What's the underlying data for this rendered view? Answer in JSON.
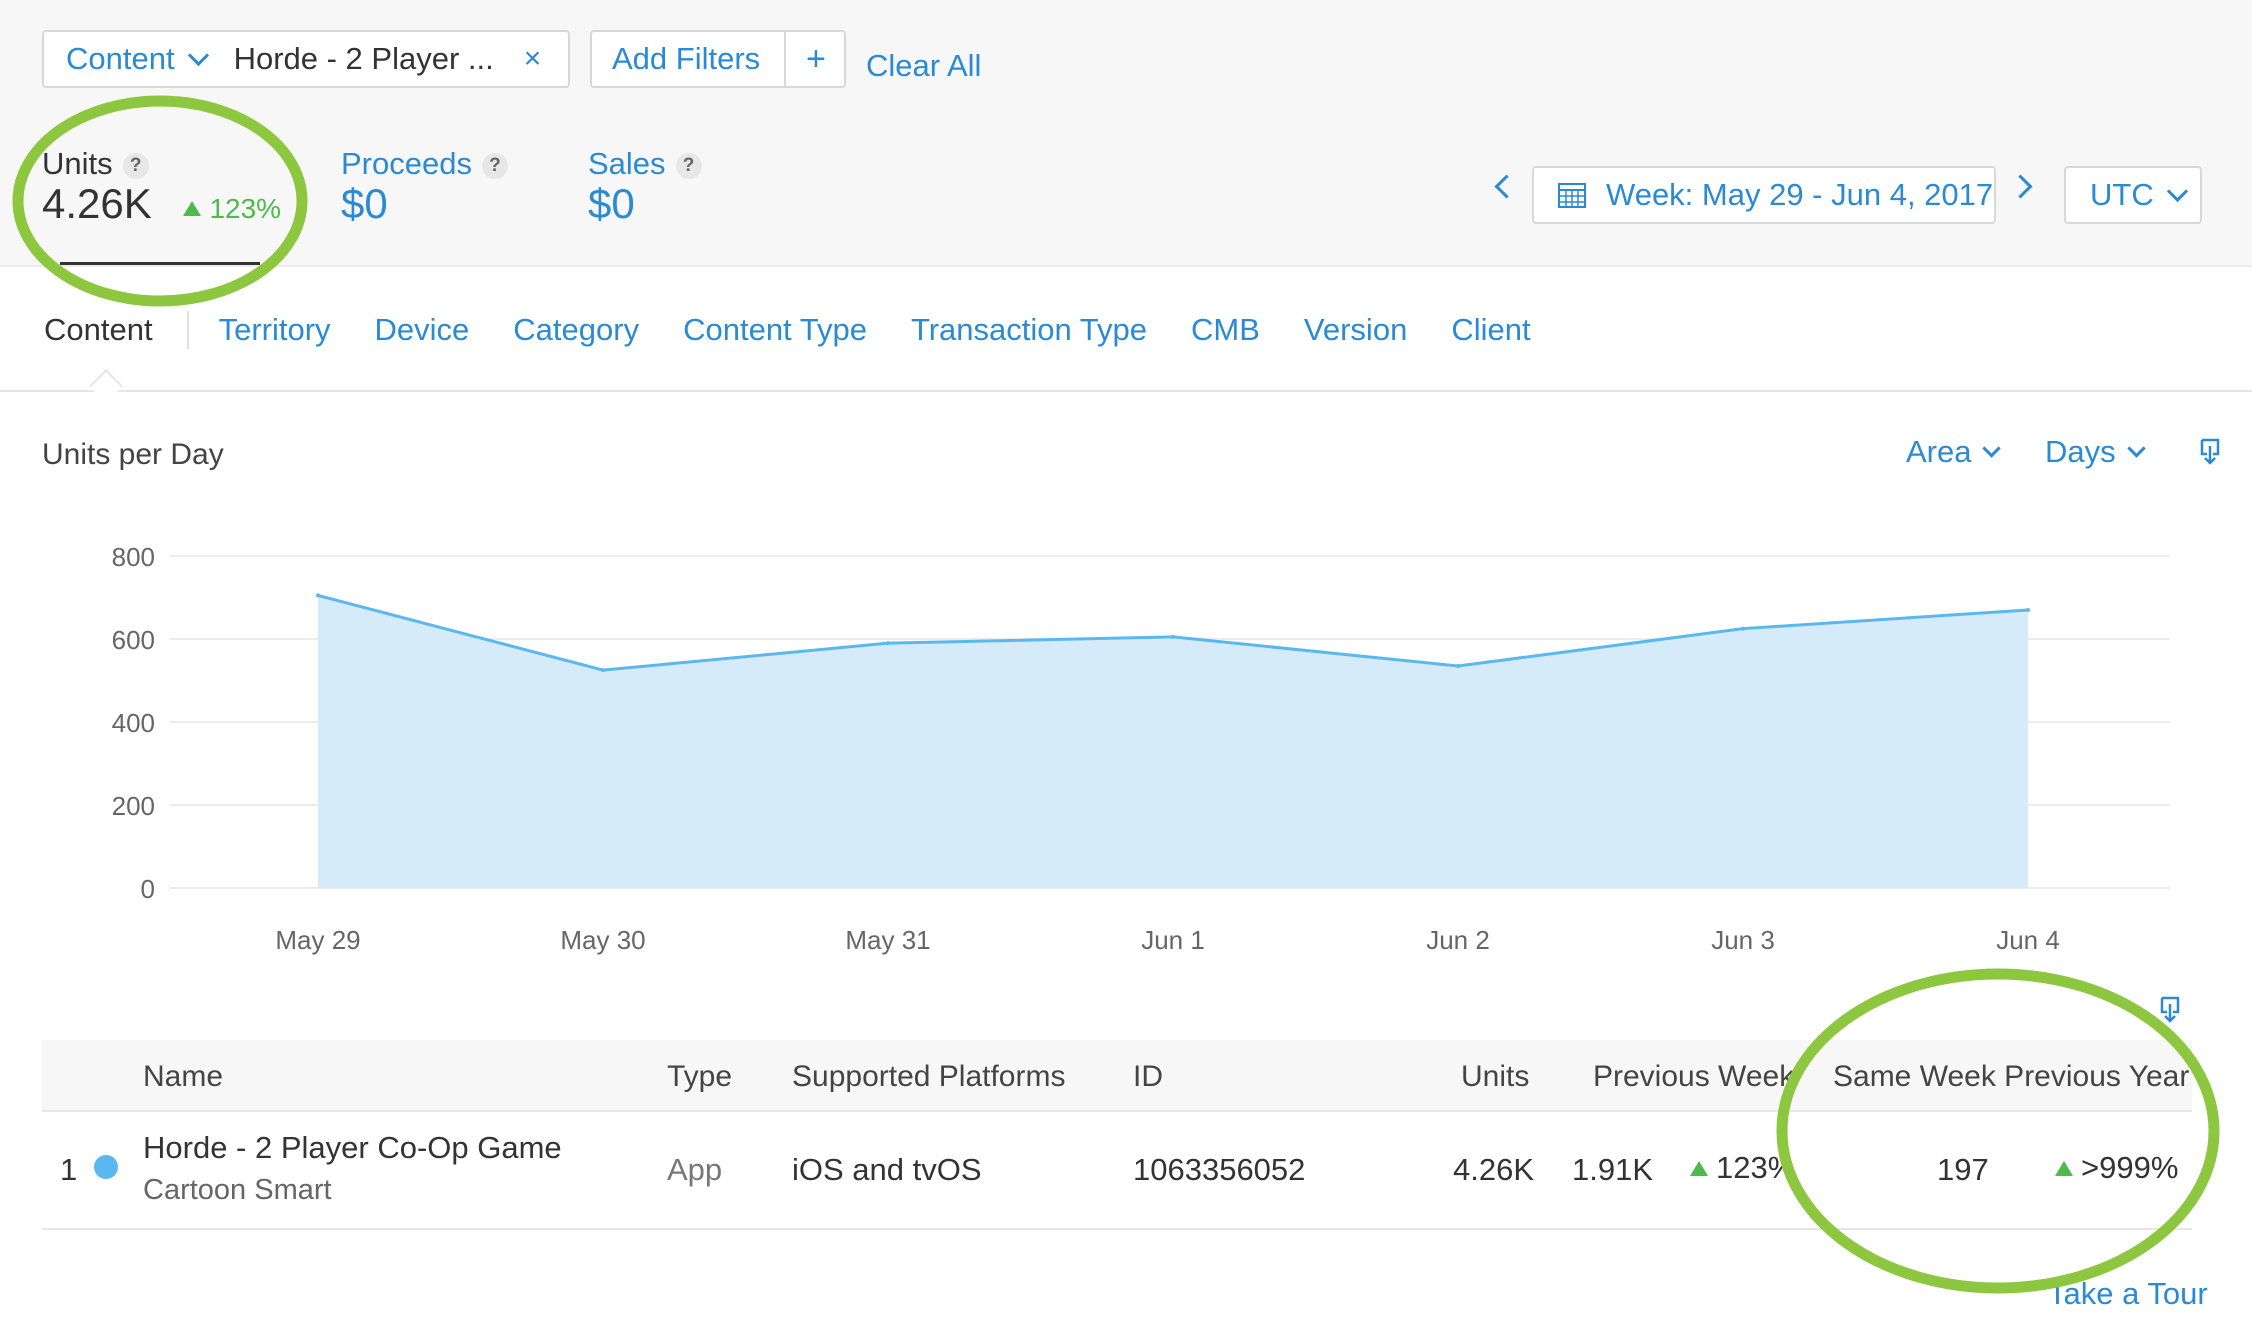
{
  "filters": {
    "content_label": "Content",
    "content_value": "Horde - 2 Player ...",
    "remove_symbol": "×",
    "add_filters_label": "Add Filters",
    "add_symbol": "+",
    "clear_all_label": "Clear All"
  },
  "metrics": {
    "units": {
      "label": "Units",
      "value": "4.26K",
      "delta": "123%"
    },
    "proceeds": {
      "label": "Proceeds",
      "value": "$0"
    },
    "sales": {
      "label": "Sales",
      "value": "$0"
    },
    "help_symbol": "?"
  },
  "date_range": {
    "label": "Week: May 29 - Jun 4, 2017",
    "timezone": "UTC"
  },
  "tabs": [
    "Content",
    "Territory",
    "Device",
    "Category",
    "Content Type",
    "Transaction Type",
    "CMB",
    "Version",
    "Client"
  ],
  "chart_controls": {
    "title": "Units per Day",
    "chart_type": "Area",
    "granularity": "Days"
  },
  "chart_data": {
    "type": "area",
    "title": "Units per Day",
    "categories": [
      "May 29",
      "May 30",
      "May 31",
      "Jun 1",
      "Jun 2",
      "Jun 3",
      "Jun 4"
    ],
    "values": [
      705,
      525,
      590,
      605,
      535,
      625,
      670
    ],
    "ylim": [
      0,
      800
    ],
    "yticks": [
      0,
      200,
      400,
      600,
      800
    ],
    "grid": true,
    "color": "#5bb8ef",
    "fill": "#d6ebfa"
  },
  "table": {
    "headers": {
      "name": "Name",
      "type": "Type",
      "platforms": "Supported Platforms",
      "id": "ID",
      "units": "Units",
      "prev_week": "Previous Week",
      "same_week_prev_year": "Same Week Previous Year"
    },
    "rows": [
      {
        "rank": "1",
        "name": "Horde - 2 Player Co-Op Game",
        "developer": "Cartoon Smart",
        "type": "App",
        "platforms": "iOS and tvOS",
        "id": "1063356052",
        "units": "4.26K",
        "prev_week_value": "1.91K",
        "prev_week_delta": "123%",
        "prev_year_value": "197",
        "prev_year_delta": ">999%"
      }
    ]
  },
  "footer": {
    "tour_label": "Take a Tour"
  },
  "colors": {
    "accent": "#2a8ad4",
    "positive": "#4cbb4c",
    "annotation": "#8dc63f"
  }
}
